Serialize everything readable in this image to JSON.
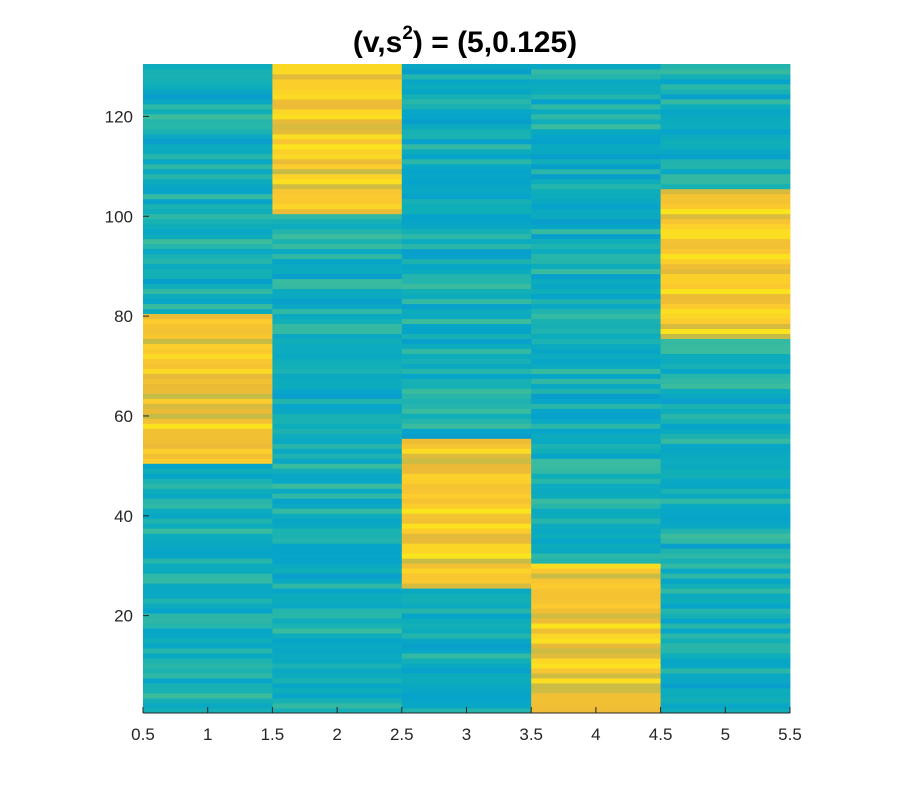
{
  "chart_data": {
    "type": "heatmap",
    "title": {
      "pre": "(v,s",
      "sup": "2",
      "post": ") = (5,0.125)"
    },
    "xlabel": "",
    "ylabel": "",
    "x": [
      1,
      2,
      3,
      4,
      5
    ],
    "y_range": [
      1,
      130
    ],
    "xlim": [
      0.5,
      5.5
    ],
    "ylim": [
      0.5,
      130.5
    ],
    "xticks": [
      "0.5",
      "1",
      "1.5",
      "2",
      "2.5",
      "3",
      "3.5",
      "4",
      "4.5",
      "5",
      "5.5"
    ],
    "xtick_values": [
      0.5,
      1,
      1.5,
      2,
      2.5,
      3,
      3.5,
      4,
      4.5,
      5,
      5.5
    ],
    "yticks": [
      "20",
      "40",
      "60",
      "80",
      "100",
      "120"
    ],
    "ytick_values": [
      20,
      40,
      60,
      80,
      100,
      120
    ],
    "colormap": "parula",
    "clim": [
      0,
      1
    ],
    "grid": false,
    "high_blocks": [
      {
        "column": 1,
        "rows": [
          51,
          80
        ]
      },
      {
        "column": 2,
        "rows": [
          101,
          130
        ]
      },
      {
        "column": 3,
        "rows": [
          26,
          55
        ]
      },
      {
        "column": 4,
        "rows": [
          1,
          30
        ]
      },
      {
        "column": 5,
        "rows": [
          76,
          105
        ]
      }
    ],
    "high_value_range": [
      0.75,
      0.95
    ],
    "low_value_range": [
      0.38,
      0.58
    ]
  }
}
